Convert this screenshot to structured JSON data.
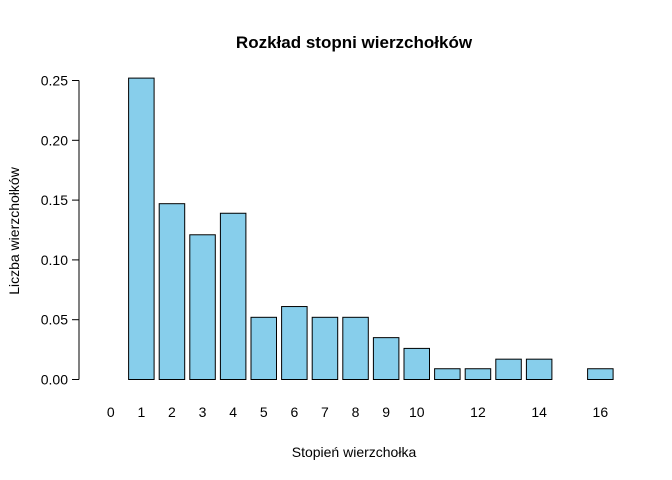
{
  "chart_data": {
    "type": "bar",
    "title": "Rozkład stopni wierzchołków",
    "xlabel": "Stopień wierzchołka",
    "ylabel": "Liczba wierzchołków",
    "categories": [
      "0",
      "1",
      "2",
      "3",
      "4",
      "5",
      "6",
      "7",
      "8",
      "9",
      "10",
      "11",
      "12",
      "13",
      "14",
      "15",
      "16"
    ],
    "x_tick_labels": [
      "0",
      "1",
      "2",
      "3",
      "4",
      "5",
      "6",
      "7",
      "8",
      "9",
      "10",
      "",
      "12",
      "",
      "14",
      "",
      "16"
    ],
    "values": [
      0.0,
      0.252,
      0.147,
      0.121,
      0.139,
      0.052,
      0.061,
      0.052,
      0.052,
      0.035,
      0.026,
      0.009,
      0.009,
      0.017,
      0.017,
      0.0,
      0.009
    ],
    "ylim": [
      0,
      0.25
    ],
    "y_ticks": [
      "0.00",
      "0.05",
      "0.10",
      "0.15",
      "0.20",
      "0.25"
    ],
    "y_tick_values": [
      0,
      0.05,
      0.1,
      0.15,
      0.2,
      0.25
    ],
    "grid": false,
    "bar_color": "#87CEEB",
    "edge_color": "#000000"
  }
}
